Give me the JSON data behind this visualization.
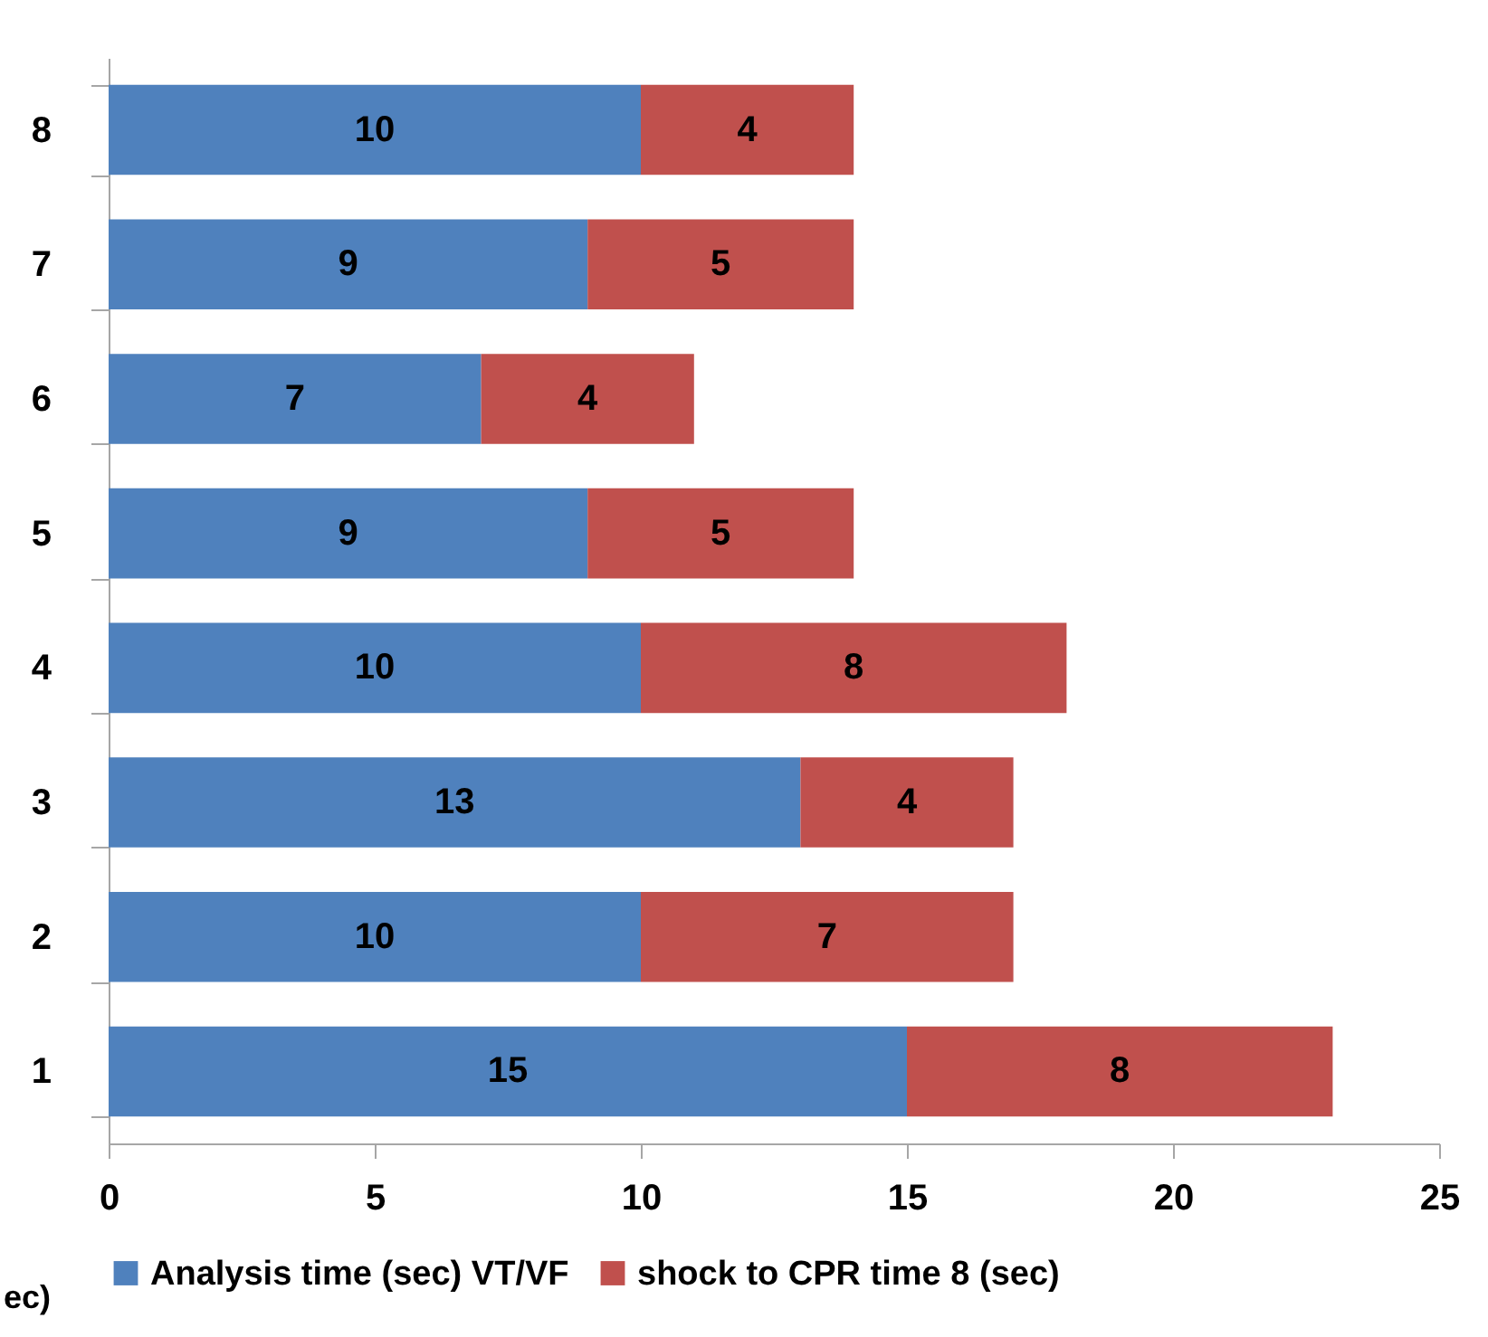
{
  "chart_data": {
    "type": "bar",
    "orientation": "horizontal",
    "stacked": true,
    "categories": [
      "8",
      "7",
      "6",
      "5",
      "4",
      "3",
      "2",
      "1"
    ],
    "series": [
      {
        "name": "Analysis time (sec) VT/VF",
        "color": "#4f81bd",
        "values": [
          10,
          9,
          7,
          9,
          10,
          13,
          10,
          15
        ]
      },
      {
        "name": "shock to CPR time 8 (sec)",
        "color": "#c0504d",
        "values": [
          4,
          5,
          4,
          5,
          8,
          4,
          7,
          8
        ]
      }
    ],
    "xlim": [
      0,
      25
    ],
    "xticks": [
      0,
      5,
      10,
      15,
      20,
      25
    ],
    "data_labels": true,
    "grid": false,
    "legend": "bottom",
    "annotations": [
      "ec)"
    ]
  }
}
